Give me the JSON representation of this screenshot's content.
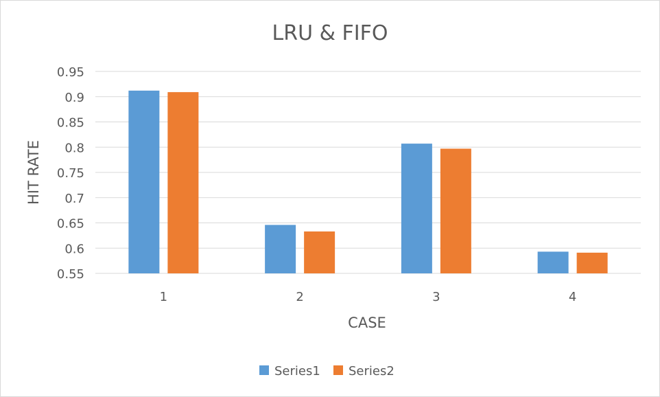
{
  "chart_data": {
    "type": "bar",
    "title": "LRU & FIFO",
    "xlabel": "CASE",
    "ylabel": "HIT RATE",
    "categories": [
      "1",
      "2",
      "3",
      "4"
    ],
    "series": [
      {
        "name": "Series1",
        "color": "#5b9bd5",
        "values": [
          0.912,
          0.646,
          0.807,
          0.593
        ]
      },
      {
        "name": "Series2",
        "color": "#ed7d31",
        "values": [
          0.909,
          0.633,
          0.797,
          0.591
        ]
      }
    ],
    "ylim": [
      0.55,
      0.95
    ],
    "yticks": [
      "0.55",
      "0.6",
      "0.65",
      "0.7",
      "0.75",
      "0.8",
      "0.85",
      "0.9",
      "0.95"
    ],
    "grid": true,
    "legend_position": "bottom"
  }
}
